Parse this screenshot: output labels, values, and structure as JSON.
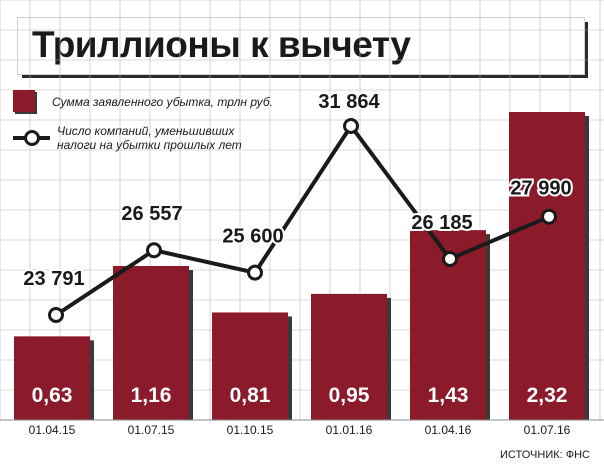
{
  "chart_data": {
    "title": "Триллионы к вычету",
    "type": "bar",
    "categories": [
      "01.04.15",
      "01.07.15",
      "01.10.15",
      "01.01.16",
      "01.04.16",
      "01.07.16"
    ],
    "ylim": [
      0,
      2.5
    ],
    "grid": true,
    "legend_position": "top-left",
    "series": [
      {
        "name": "Сумма заявленного убытка, трлн руб.",
        "type": "bar",
        "values": [
          0.63,
          1.16,
          0.81,
          0.95,
          1.43,
          2.32
        ],
        "labels": [
          "0,63",
          "1,16",
          "0,81",
          "0,95",
          "1,43",
          "2,32"
        ],
        "color": "#8b1a2b"
      },
      {
        "name_lines": [
          "Число компаний, уменьшивших",
          "налоги на убытки прошлых лет"
        ],
        "type": "line",
        "values": [
          23791,
          26557,
          25600,
          31864,
          26185,
          27990
        ],
        "labels": [
          "23 791",
          "26 557",
          "25 600",
          "31 864",
          "26 185",
          "27 990"
        ],
        "ylim": [
          17000,
          33500
        ],
        "color": "#1a1a1a"
      }
    ],
    "source": "ИСТОЧНИК: ФНС"
  }
}
